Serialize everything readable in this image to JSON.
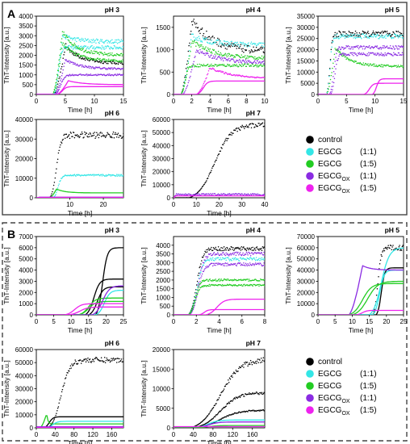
{
  "panels": [
    {
      "letter": "A",
      "border": "solid"
    },
    {
      "letter": "B",
      "border": "dashed"
    }
  ],
  "legend": {
    "entries": [
      {
        "main": "control",
        "sub": "",
        "ratio": "",
        "color": "#000000"
      },
      {
        "main": "EGCG",
        "sub": "",
        "ratio": "(1:1)",
        "color": "#33e6e6"
      },
      {
        "main": "EGCG",
        "sub": "",
        "ratio": "(1:5)",
        "color": "#22cc22"
      },
      {
        "main": "EGCG",
        "sub": "OX",
        "ratio": "(1:1)",
        "color": "#8a2be2"
      },
      {
        "main": "EGCG",
        "sub": "OX",
        "ratio": "(1:5)",
        "color": "#ee22ee"
      }
    ]
  },
  "chart_data": [
    {
      "type": "line",
      "panel": "A",
      "title": "pH 3",
      "xlabel": "Time [h]",
      "ylabel": "ThT-Intensity [a.u.]",
      "xlim": [
        0,
        15
      ],
      "ylim": [
        0,
        4000
      ],
      "xticks": [
        0,
        5,
        10,
        15
      ],
      "yticks": [
        0,
        500,
        1000,
        1500,
        2000,
        2500,
        3000,
        3500,
        4000
      ],
      "series": [
        {
          "color": "#000000",
          "style": "dots",
          "lag": 3,
          "rise": 2,
          "plateau": 1600,
          "peak": 2500,
          "peakAt": 5,
          "noise": 0.05
        },
        {
          "color": "#33e6e6",
          "style": "dots",
          "lag": 3,
          "rise": 1.5,
          "plateau": 2700,
          "peak": 3000,
          "peakAt": 4.5,
          "noise": 0.04
        },
        {
          "color": "#33e6e6",
          "style": "dots",
          "lag": 3,
          "rise": 1.5,
          "plateau": 2400,
          "noise": 0.04
        },
        {
          "color": "#22cc22",
          "style": "dots",
          "lag": 2.8,
          "rise": 1.5,
          "plateau": 2000,
          "peak": 3200,
          "peakAt": 4.5,
          "noise": 0.04
        },
        {
          "color": "#22cc22",
          "style": "dots",
          "lag": 2.8,
          "rise": 1.5,
          "plateau": 1700,
          "peak": 2600,
          "peakAt": 4.5,
          "noise": 0.04
        },
        {
          "color": "#8a2be2",
          "style": "dots",
          "lag": 3.2,
          "rise": 2,
          "plateau": 1300,
          "peak": 1800,
          "peakAt": 5,
          "noise": 0.04
        },
        {
          "color": "#8a2be2",
          "style": "dots",
          "lag": 3.2,
          "rise": 2,
          "plateau": 1000,
          "noise": 0.04
        },
        {
          "color": "#ee22ee",
          "style": "line",
          "lag": 3.5,
          "rise": 2,
          "plateau": 500,
          "peak": 700,
          "peakAt": 5.5,
          "noise": 0
        },
        {
          "color": "#ee22ee",
          "style": "line",
          "lag": 3.5,
          "rise": 2,
          "plateau": 400,
          "noise": 0
        }
      ]
    },
    {
      "type": "line",
      "panel": "A",
      "title": "pH 4",
      "xlabel": "Time [h]",
      "ylabel": "ThT-Intensity [a.u.]",
      "xlim": [
        0,
        10
      ],
      "ylim": [
        0,
        1750
      ],
      "xticks": [
        0,
        2,
        4,
        6,
        8,
        10
      ],
      "yticks": [
        0,
        500,
        1000,
        1500
      ],
      "series": [
        {
          "color": "#000000",
          "style": "dots",
          "lag": 0.8,
          "rise": 1,
          "plateau": 950,
          "peak": 1650,
          "peakAt": 2,
          "noise": 0.08
        },
        {
          "color": "#33e6e6",
          "style": "dots",
          "lag": 0.8,
          "rise": 1,
          "plateau": 1100,
          "peak": 1300,
          "peakAt": 2,
          "noise": 0.05
        },
        {
          "color": "#22cc22",
          "style": "dots",
          "lag": 0.8,
          "rise": 1,
          "plateau": 800,
          "peak": 1200,
          "peakAt": 2,
          "noise": 0.05
        },
        {
          "color": "#22cc22",
          "style": "dots",
          "lag": 0.8,
          "rise": 1,
          "plateau": 650,
          "noise": 0.05
        },
        {
          "color": "#8a2be2",
          "style": "dots",
          "lag": 1.0,
          "rise": 1,
          "plateau": 700,
          "peak": 1000,
          "peakAt": 2.5,
          "noise": 0.05
        },
        {
          "color": "#ee22ee",
          "style": "dots",
          "lag": 2.5,
          "rise": 1.5,
          "plateau": 350,
          "peak": 600,
          "peakAt": 4,
          "noise": 0.04
        },
        {
          "color": "#ee22ee",
          "style": "line",
          "lag": 2.5,
          "rise": 1.5,
          "plateau": 300,
          "noise": 0
        }
      ]
    },
    {
      "type": "line",
      "panel": "A",
      "title": "pH 5",
      "xlabel": "Time [h]",
      "ylabel": "ThT-Intensity [a.u.]",
      "xlim": [
        0,
        15
      ],
      "ylim": [
        0,
        35000
      ],
      "xticks": [
        0,
        5,
        10,
        15
      ],
      "yticks": [
        0,
        5000,
        10000,
        15000,
        20000,
        25000,
        30000,
        35000
      ],
      "series": [
        {
          "color": "#000000",
          "style": "dots",
          "lag": 1.5,
          "rise": 1.2,
          "plateau": 27000,
          "noise": 0.05
        },
        {
          "color": "#33e6e6",
          "style": "dots",
          "lag": 1.5,
          "rise": 1.2,
          "plateau": 26000,
          "noise": 0.04
        },
        {
          "color": "#22cc22",
          "style": "dots",
          "lag": 1.5,
          "rise": 1.2,
          "plateau": 12500,
          "peak": 21000,
          "peakAt": 3,
          "noise": 0.04
        },
        {
          "color": "#8a2be2",
          "style": "dots",
          "lag": 2,
          "rise": 1.5,
          "plateau": 21000,
          "noise": 0.04
        },
        {
          "color": "#8a2be2",
          "style": "dots",
          "lag": 2.2,
          "rise": 1.5,
          "plateau": 18000,
          "noise": 0.04
        },
        {
          "color": "#ee22ee",
          "style": "line",
          "lag": 8,
          "rise": 2,
          "plateau": 5000,
          "noise": 0
        },
        {
          "color": "#ee22ee",
          "style": "line",
          "lag": 9.5,
          "rise": 1.5,
          "plateau": 7000,
          "noise": 0
        }
      ]
    },
    {
      "type": "line",
      "panel": "A",
      "title": "pH 6",
      "xlabel": "Time [h]",
      "ylabel": "ThT-Intensity [a.u.]",
      "xlim": [
        0,
        26
      ],
      "ylim": [
        0,
        40000
      ],
      "xticks": [
        10,
        20
      ],
      "yticks": [
        0,
        10000,
        20000,
        30000,
        40000
      ],
      "series": [
        {
          "color": "#000000",
          "style": "dots",
          "lag": 4,
          "rise": 4,
          "plateau": 32000,
          "noise": 0.05
        },
        {
          "color": "#33e6e6",
          "style": "dots",
          "lag": 5,
          "rise": 3,
          "plateau": 11500,
          "noise": 0.04
        },
        {
          "color": "#22cc22",
          "style": "line",
          "lag": 4,
          "rise": 1,
          "plateau": 2500,
          "peak": 4500,
          "peakAt": 6,
          "noise": 0
        },
        {
          "color": "#8a2be2",
          "style": "line",
          "lag": 0,
          "rise": 1,
          "plateau": 300,
          "noise": 0
        },
        {
          "color": "#ee22ee",
          "style": "line",
          "lag": 0,
          "rise": 1,
          "plateau": 200,
          "noise": 0
        }
      ]
    },
    {
      "type": "line",
      "panel": "A",
      "title": "pH 7",
      "xlabel": "Time [h]",
      "ylabel": "ThT-Intensity [a.u.]",
      "xlim": [
        0,
        40
      ],
      "ylim": [
        0,
        60000
      ],
      "xticks": [
        0,
        10,
        20,
        30,
        40
      ],
      "yticks": [
        0,
        10000,
        20000,
        30000,
        40000,
        50000,
        60000
      ],
      "series": [
        {
          "color": "#000000",
          "style": "dots",
          "lag": 7,
          "rise": 22,
          "plateau": 56000,
          "noise": 0.03
        },
        {
          "color": "#8a2be2",
          "style": "dots",
          "lag": 0,
          "rise": 1,
          "plateau": 2500,
          "noise": 0.3
        },
        {
          "color": "#ee22ee",
          "style": "line",
          "lag": 0,
          "rise": 1,
          "plateau": 1500,
          "noise": 0
        }
      ]
    },
    {
      "type": "line",
      "panel": "B",
      "title": "pH 3",
      "xlabel": "Time [h]",
      "ylabel": "ThT-Intensity [a.u.]",
      "xlim": [
        0,
        25
      ],
      "ylim": [
        0,
        7000
      ],
      "xticks": [
        0,
        5,
        10,
        15,
        20,
        25
      ],
      "yticks": [
        0,
        1000,
        2000,
        3000,
        4000,
        5000,
        6000,
        7000
      ],
      "series": [
        {
          "color": "#000000",
          "style": "line",
          "lag": 17,
          "rise": 4,
          "plateau": 6000,
          "noise": 0
        },
        {
          "color": "#000000",
          "style": "line",
          "lag": 14,
          "rise": 5,
          "plateau": 3200,
          "noise": 0
        },
        {
          "color": "#000000",
          "style": "line",
          "lag": 15,
          "rise": 5,
          "plateau": 2500,
          "noise": 0
        },
        {
          "color": "#33e6e6",
          "style": "line",
          "lag": 17,
          "rise": 5,
          "plateau": 2200,
          "noise": 0
        },
        {
          "color": "#22cc22",
          "style": "line",
          "lag": 12,
          "rise": 6,
          "plateau": 1500,
          "noise": 0
        },
        {
          "color": "#22cc22",
          "style": "line",
          "lag": 12,
          "rise": 6,
          "plateau": 1200,
          "noise": 0
        },
        {
          "color": "#8a2be2",
          "style": "line",
          "lag": 16,
          "rise": 6,
          "plateau": 2600,
          "noise": 0
        },
        {
          "color": "#ee22ee",
          "style": "line",
          "lag": 8,
          "rise": 6,
          "plateau": 1000,
          "noise": 0
        },
        {
          "color": "#ee22ee",
          "style": "line",
          "lag": 9,
          "rise": 7,
          "plateau": 700,
          "noise": 0
        }
      ]
    },
    {
      "type": "line",
      "panel": "B",
      "title": "pH 4",
      "xlabel": "Time [h]",
      "ylabel": "ThT-Intensity [a.u.]",
      "xlim": [
        0,
        8
      ],
      "ylim": [
        0,
        4500
      ],
      "xticks": [
        0,
        2,
        4,
        6,
        8
      ],
      "yticks": [
        0,
        500,
        1000,
        1500,
        2000,
        2500,
        3000,
        3500,
        4000
      ],
      "series": [
        {
          "color": "#000000",
          "style": "dots",
          "lag": 1.3,
          "rise": 1.5,
          "plateau": 3800,
          "noise": 0.03
        },
        {
          "color": "#33e6e6",
          "style": "dots",
          "lag": 1.3,
          "rise": 1.5,
          "plateau": 3200,
          "noise": 0.03
        },
        {
          "color": "#8a2be2",
          "style": "dots",
          "lag": 1.4,
          "rise": 1.5,
          "plateau": 3500,
          "noise": 0.03
        },
        {
          "color": "#8a2be2",
          "style": "dots",
          "lag": 1.4,
          "rise": 1.5,
          "plateau": 2900,
          "noise": 0.03
        },
        {
          "color": "#22cc22",
          "style": "dots",
          "lag": 1.3,
          "rise": 1.2,
          "plateau": 2000,
          "noise": 0.03
        },
        {
          "color": "#22cc22",
          "style": "dots",
          "lag": 1.3,
          "rise": 1.2,
          "plateau": 1700,
          "noise": 0.03
        },
        {
          "color": "#ee22ee",
          "style": "line",
          "lag": 2.8,
          "rise": 2,
          "plateau": 900,
          "noise": 0
        },
        {
          "color": "#ee22ee",
          "style": "line",
          "lag": 2.2,
          "rise": 1,
          "plateau": 300,
          "noise": 0
        }
      ]
    },
    {
      "type": "line",
      "panel": "B",
      "title": "pH 5",
      "xlabel": "Time [h]",
      "ylabel": "ThT-Intensity [a.u.]",
      "xlim": [
        0,
        25
      ],
      "ylim": [
        0,
        70000
      ],
      "xticks": [
        0,
        5,
        10,
        15,
        20,
        25
      ],
      "yticks": [
        0,
        10000,
        20000,
        30000,
        40000,
        50000,
        60000,
        70000
      ],
      "series": [
        {
          "color": "#000000",
          "style": "dots",
          "lag": 16,
          "rise": 3,
          "plateau": 60000,
          "noise": 0.04
        },
        {
          "color": "#000000",
          "style": "line",
          "lag": 17,
          "rise": 3,
          "plateau": 42000,
          "noise": 0
        },
        {
          "color": "#33e6e6",
          "style": "line",
          "lag": 15,
          "rise": 7,
          "plateau": 60000,
          "noise": 0
        },
        {
          "color": "#33e6e6",
          "style": "line",
          "lag": 16,
          "rise": 4,
          "plateau": 40000,
          "noise": 0
        },
        {
          "color": "#8a2be2",
          "style": "line",
          "lag": 9,
          "rise": 3,
          "plateau": 40000,
          "peak": 44000,
          "peakAt": 13,
          "noise": 0
        },
        {
          "color": "#22cc22",
          "style": "line",
          "lag": 9,
          "rise": 8,
          "plateau": 28000,
          "noise": 0
        },
        {
          "color": "#22cc22",
          "style": "line",
          "lag": 10,
          "rise": 9,
          "plateau": 30000,
          "noise": 0
        },
        {
          "color": "#ee22ee",
          "style": "line",
          "lag": 11,
          "rise": 4,
          "plateau": 4000,
          "noise": 0
        }
      ]
    },
    {
      "type": "line",
      "panel": "B",
      "title": "pH 6",
      "xlabel": "Time [h]",
      "ylabel": "ThT-Intensity [a.u.]",
      "xlim": [
        0,
        185
      ],
      "ylim": [
        0,
        60000
      ],
      "xticks": [
        0,
        40,
        80,
        120,
        160
      ],
      "yticks": [
        0,
        10000,
        20000,
        30000,
        40000,
        50000,
        60000
      ],
      "series": [
        {
          "color": "#000000",
          "style": "dots",
          "lag": 25,
          "rise": 55,
          "plateau": 52000,
          "noise": 0.04
        },
        {
          "color": "#000000",
          "style": "line",
          "lag": 15,
          "rise": 25,
          "plateau": 8500,
          "noise": 0
        },
        {
          "color": "#22cc22",
          "style": "line",
          "lag": 8,
          "rise": 8,
          "plateau": 3000,
          "peak": 11000,
          "peakAt": 22,
          "noise": 0
        },
        {
          "color": "#33e6e6",
          "style": "line",
          "lag": 20,
          "rise": 30,
          "plateau": 5000,
          "noise": 0
        },
        {
          "color": "#8a2be2",
          "style": "line",
          "lag": 0,
          "rise": 1,
          "plateau": 800,
          "noise": 0
        },
        {
          "color": "#ee22ee",
          "style": "line",
          "lag": 0,
          "rise": 1,
          "plateau": 400,
          "noise": 0
        }
      ]
    },
    {
      "type": "line",
      "panel": "B",
      "title": "pH 7",
      "xlabel": "Time [h]",
      "ylabel": "ThT-Intensity [a.u.]",
      "xlim": [
        0,
        185
      ],
      "ylim": [
        0,
        20000
      ],
      "xticks": [
        0,
        40,
        80,
        120,
        160
      ],
      "yticks": [
        0,
        5000,
        10000,
        15000,
        20000
      ],
      "series": [
        {
          "color": "#000000",
          "style": "dots",
          "lag": 35,
          "rise": 120,
          "plateau": 17500,
          "noise": 0.04
        },
        {
          "color": "#000000",
          "style": "dots",
          "lag": 40,
          "rise": 110,
          "plateau": 9000,
          "noise": 0.04
        },
        {
          "color": "#000000",
          "style": "dots",
          "lag": 40,
          "rise": 110,
          "plateau": 4500,
          "noise": 0.04
        },
        {
          "color": "#33e6e6",
          "style": "line",
          "lag": 40,
          "rise": 60,
          "plateau": 2000,
          "noise": 0
        },
        {
          "color": "#8a2be2",
          "style": "line",
          "lag": 40,
          "rise": 60,
          "plateau": 1500,
          "noise": 0
        },
        {
          "color": "#22cc22",
          "style": "line",
          "lag": 40,
          "rise": 60,
          "plateau": 600,
          "noise": 0
        },
        {
          "color": "#ee22ee",
          "style": "line",
          "lag": 0,
          "rise": 1,
          "plateau": 300,
          "noise": 0
        }
      ]
    }
  ]
}
